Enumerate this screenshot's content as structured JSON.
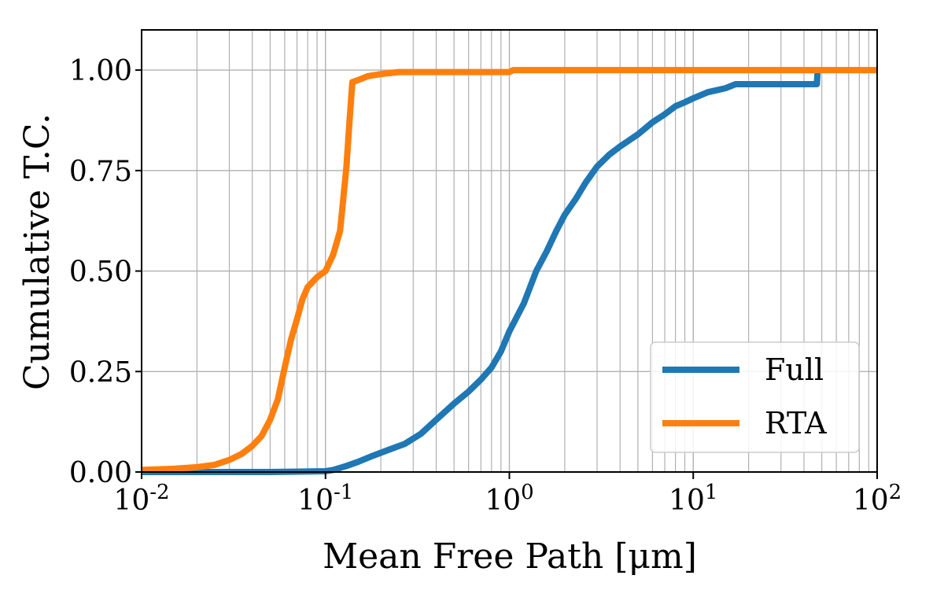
{
  "chart_data": {
    "type": "line",
    "title": "",
    "xlabel": "Mean Free Path [μm]",
    "ylabel": "Cumulative T.C.",
    "xscale": "log",
    "xlim": [
      0.01,
      100
    ],
    "ylim": [
      0,
      1.1
    ],
    "grid": true,
    "legend_position": "lower-right",
    "x_ticks": [
      {
        "value": 0.01,
        "base": "10",
        "exp": "-2"
      },
      {
        "value": 0.1,
        "base": "10",
        "exp": "-1"
      },
      {
        "value": 1,
        "base": "10",
        "exp": "0"
      },
      {
        "value": 10,
        "base": "10",
        "exp": "1"
      },
      {
        "value": 100,
        "base": "10",
        "exp": "2"
      }
    ],
    "y_ticks": [
      {
        "value": 0.0,
        "label": "0.00"
      },
      {
        "value": 0.25,
        "label": "0.25"
      },
      {
        "value": 0.5,
        "label": "0.50"
      },
      {
        "value": 0.75,
        "label": "0.75"
      },
      {
        "value": 1.0,
        "label": "1.00"
      }
    ],
    "series": [
      {
        "name": "Full",
        "color": "#1f77b4",
        "x": [
          0.01,
          0.05,
          0.1,
          0.11,
          0.13,
          0.15,
          0.18,
          0.22,
          0.27,
          0.33,
          0.4,
          0.5,
          0.6,
          0.7,
          0.8,
          0.9,
          1.0,
          1.2,
          1.4,
          1.6,
          1.8,
          2.0,
          2.3,
          2.6,
          3.0,
          3.5,
          4.0,
          5.0,
          6.0,
          7.0,
          8.0,
          9.0,
          10.0,
          12.0,
          15.0,
          17.0,
          20.0,
          30.0,
          47.0,
          47.5
        ],
        "y": [
          0.0,
          0.0,
          0.002,
          0.005,
          0.015,
          0.025,
          0.04,
          0.055,
          0.07,
          0.095,
          0.13,
          0.17,
          0.2,
          0.23,
          0.26,
          0.3,
          0.35,
          0.42,
          0.5,
          0.55,
          0.6,
          0.64,
          0.68,
          0.72,
          0.76,
          0.79,
          0.81,
          0.84,
          0.87,
          0.89,
          0.91,
          0.92,
          0.93,
          0.945,
          0.955,
          0.965,
          0.965,
          0.965,
          0.965,
          1.0
        ]
      },
      {
        "name": "RTA",
        "color": "#ff7f0e",
        "x": [
          0.01,
          0.015,
          0.02,
          0.025,
          0.03,
          0.035,
          0.04,
          0.045,
          0.05,
          0.055,
          0.06,
          0.065,
          0.07,
          0.075,
          0.08,
          0.09,
          0.1,
          0.11,
          0.12,
          0.125,
          0.13,
          0.135,
          0.14,
          0.15,
          0.17,
          0.2,
          0.25,
          0.3,
          0.5,
          1.0,
          1.05,
          2.0,
          10.0,
          100.0
        ],
        "y": [
          0.005,
          0.008,
          0.012,
          0.018,
          0.03,
          0.045,
          0.065,
          0.09,
          0.13,
          0.18,
          0.26,
          0.33,
          0.38,
          0.43,
          0.46,
          0.485,
          0.5,
          0.54,
          0.6,
          0.68,
          0.76,
          0.87,
          0.97,
          0.975,
          0.985,
          0.99,
          0.995,
          0.995,
          0.995,
          0.995,
          1.0,
          1.0,
          1.0,
          1.0
        ]
      }
    ]
  }
}
